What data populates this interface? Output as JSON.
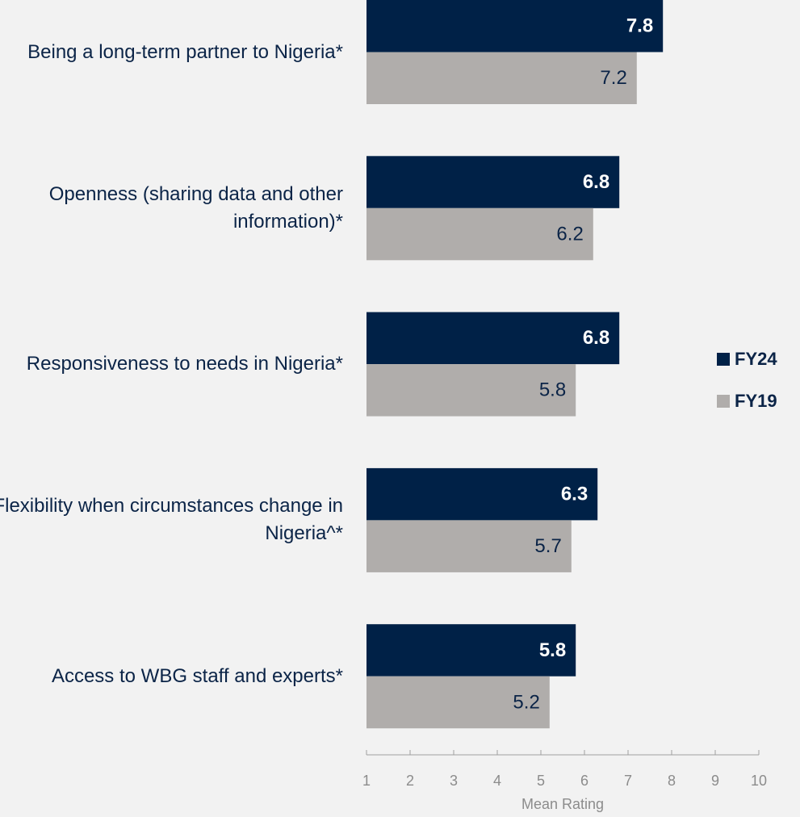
{
  "chart_data": {
    "type": "bar",
    "orientation": "horizontal",
    "categories": [
      "Being a long-term partner to Nigeria*",
      "Openness (sharing data and other information)*",
      "Responsiveness to needs in Nigeria*",
      "Flexibility when circumstances change in Nigeria^*",
      "Access to WBG staff and experts*"
    ],
    "series": [
      {
        "name": "FY24",
        "color": "#002147",
        "values": [
          7.8,
          6.8,
          6.8,
          6.3,
          5.8
        ]
      },
      {
        "name": "FY19",
        "color": "#b0adab",
        "values": [
          7.2,
          6.2,
          5.8,
          5.7,
          5.2
        ]
      }
    ],
    "xlabel": "Mean Rating",
    "xlim": [
      1,
      10
    ],
    "xticks": [
      1,
      2,
      3,
      4,
      5,
      6,
      7,
      8,
      9,
      10
    ],
    "legend": "right",
    "grid": false
  }
}
